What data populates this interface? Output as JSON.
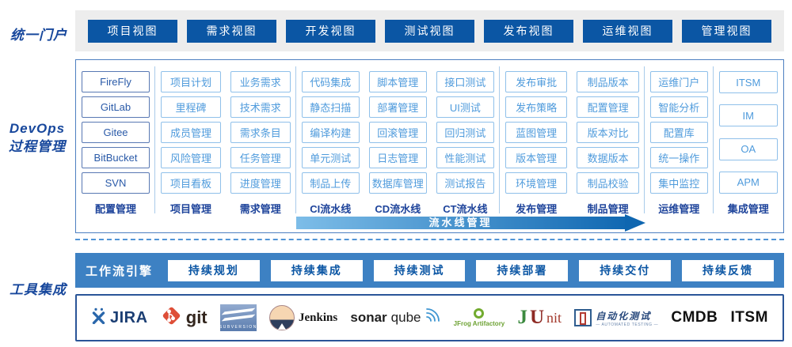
{
  "colors": {
    "primary_blue": "#0b56a4",
    "light_box_blue": "#4f9bdc",
    "workflow_bar_blue": "#3d81c3",
    "arrow_gradient_start": "#7dbde8",
    "arrow_gradient_end": "#0f66b0",
    "label_navy": "#1e449b"
  },
  "portal": {
    "section_label": "统一门户",
    "views": [
      "项目视图",
      "需求视图",
      "开发视图",
      "测试视图",
      "发布视图",
      "运维视图",
      "管理视图"
    ]
  },
  "process": {
    "section_label_line1": "DevOps",
    "section_label_line2": "过程管理",
    "groups": [
      {
        "columns": [
          {
            "label": "配置管理",
            "variant": "dark",
            "items": [
              "FireFly",
              "GitLab",
              "Gitee",
              "BitBucket",
              "SVN"
            ]
          }
        ]
      },
      {
        "columns": [
          {
            "label": "项目管理",
            "items": [
              "项目计划",
              "里程碑",
              "成员管理",
              "风险管理",
              "项目看板"
            ]
          },
          {
            "label": "需求管理",
            "items": [
              "业务需求",
              "技术需求",
              "需求条目",
              "任务管理",
              "进度管理"
            ]
          }
        ]
      },
      {
        "columns": [
          {
            "label": "CI流水线",
            "items": [
              "代码集成",
              "静态扫描",
              "编译构建",
              "单元测试",
              "制品上传"
            ]
          },
          {
            "label": "CD流水线",
            "items": [
              "脚本管理",
              "部署管理",
              "回滚管理",
              "日志管理",
              "数据库管理"
            ]
          },
          {
            "label": "CT流水线",
            "items": [
              "接口测试",
              "UI测试",
              "回归测试",
              "性能测试",
              "测试报告"
            ]
          }
        ]
      },
      {
        "columns": [
          {
            "label": "发布管理",
            "items": [
              "发布审批",
              "发布策略",
              "蓝图管理",
              "版本管理",
              "环境管理"
            ]
          },
          {
            "label": "制品管理",
            "items": [
              "制品版本",
              "配置管理",
              "版本对比",
              "数据版本",
              "制品校验"
            ]
          }
        ]
      },
      {
        "columns": [
          {
            "label": "运维管理",
            "items": [
              "运维门户",
              "智能分析",
              "配置库",
              "统一操作",
              "集中监控"
            ]
          }
        ]
      },
      {
        "columns": [
          {
            "label": "集成管理",
            "variant": "sparse",
            "items": [
              "ITSM",
              "IM",
              "OA",
              "APM"
            ]
          }
        ]
      }
    ],
    "pipeline_arrow_label": "流水线管理"
  },
  "workflow": {
    "engine_label": "工作流引擎",
    "stages": [
      "持续规划",
      "持续集成",
      "持续测试",
      "持续部署",
      "持续交付",
      "持续反馈"
    ]
  },
  "tools": {
    "section_label": "工具集成",
    "logos": [
      {
        "id": "jira",
        "text": "JIRA"
      },
      {
        "id": "git",
        "text": "git"
      },
      {
        "id": "subversion",
        "caption": "SUBVERSION"
      },
      {
        "id": "jenkins",
        "text": "Jenkins"
      },
      {
        "id": "sonarqube",
        "text_bold": "sonar",
        "text_light": "qube"
      },
      {
        "id": "jfrog",
        "text": "JFrog Artifactory"
      },
      {
        "id": "junit",
        "j": "J",
        "u": "U",
        "nit": "nit"
      },
      {
        "id": "autotest",
        "text": "自动化测试",
        "caption": "— AUTOMATED TESTING —"
      },
      {
        "id": "cmdb",
        "text": "CMDB"
      },
      {
        "id": "itsm",
        "text": "ITSM"
      }
    ]
  }
}
